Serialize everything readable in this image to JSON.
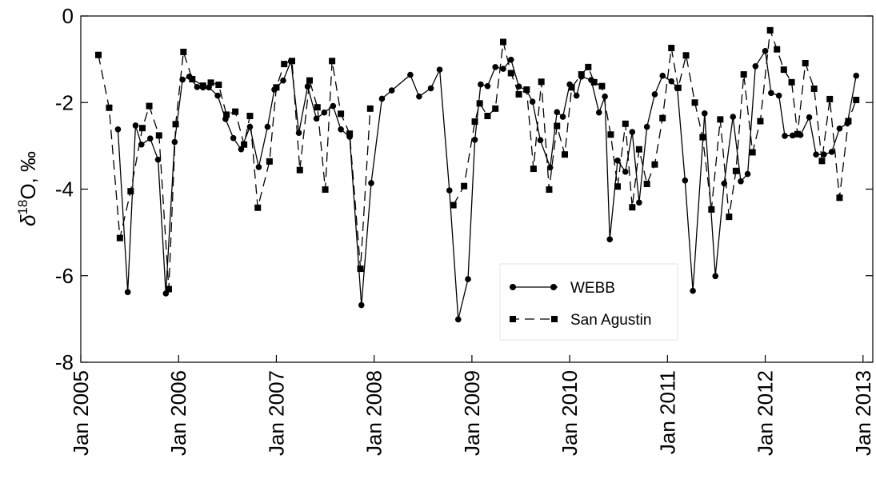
{
  "chart_data": {
    "type": "line",
    "title": "",
    "xlabel": "",
    "ylabel": "δ18O, ‰",
    "ylabel_parts": {
      "symbol": "δ",
      "superscript": "18",
      "element": "O",
      "unit": ", ‰"
    },
    "xlim": [
      2005.0,
      2013.1
    ],
    "ylim": [
      -8,
      0
    ],
    "x_ticks": [
      {
        "value": 2005,
        "label": "Jan 2005"
      },
      {
        "value": 2006,
        "label": "Jan 2006"
      },
      {
        "value": 2007,
        "label": "Jan 2007"
      },
      {
        "value": 2008,
        "label": "Jan 2008"
      },
      {
        "value": 2009,
        "label": "Jan 2009"
      },
      {
        "value": 2010,
        "label": "Jan 2010"
      },
      {
        "value": 2011,
        "label": "Jan 2011"
      },
      {
        "value": 2012,
        "label": "Jan 2012"
      },
      {
        "value": 2013,
        "label": "Jan 2013"
      }
    ],
    "y_ticks": [
      {
        "value": 0,
        "label": "0"
      },
      {
        "value": -2,
        "label": "-2"
      },
      {
        "value": -4,
        "label": "-4"
      },
      {
        "value": -6,
        "label": "-6"
      },
      {
        "value": -8,
        "label": "-8"
      }
    ],
    "grid": false,
    "legend_position": "center-right",
    "series": [
      {
        "name": "WEBB",
        "style": "solid",
        "marker": "circle",
        "color": "#000000",
        "points": [
          [
            2005.38,
            -2.62
          ],
          [
            2005.48,
            -6.38
          ],
          [
            2005.56,
            -2.53
          ],
          [
            2005.62,
            -2.97
          ],
          [
            2005.71,
            -2.83
          ],
          [
            2005.79,
            -3.32
          ],
          [
            2005.87,
            -6.41
          ],
          [
            2005.96,
            -2.91
          ],
          [
            2006.04,
            -1.47
          ],
          [
            2006.11,
            -1.4
          ],
          [
            2006.19,
            -1.64
          ],
          [
            2006.25,
            -1.65
          ],
          [
            2006.31,
            -1.65
          ],
          [
            2006.4,
            -1.84
          ],
          [
            2006.48,
            -2.38
          ],
          [
            2006.56,
            -2.82
          ],
          [
            2006.64,
            -3.08
          ],
          [
            2006.73,
            -2.56
          ],
          [
            2006.82,
            -3.49
          ],
          [
            2006.91,
            -2.56
          ],
          [
            2006.98,
            -1.7
          ],
          [
            2007.07,
            -1.49
          ],
          [
            2007.15,
            -1.04
          ],
          [
            2007.23,
            -2.7
          ],
          [
            2007.32,
            -1.63
          ],
          [
            2007.41,
            -2.37
          ],
          [
            2007.49,
            -2.23
          ],
          [
            2007.58,
            -2.08
          ],
          [
            2007.66,
            -2.62
          ],
          [
            2007.75,
            -2.79
          ],
          [
            2007.87,
            -6.68
          ],
          [
            2007.97,
            -3.86
          ],
          [
            2008.08,
            -1.91
          ],
          [
            2008.18,
            -1.72
          ],
          [
            2008.37,
            -1.36
          ],
          [
            2008.46,
            -1.86
          ],
          [
            2008.58,
            -1.67
          ],
          [
            2008.67,
            -1.24
          ],
          [
            2008.77,
            -4.03
          ],
          [
            2008.86,
            -7.01
          ],
          [
            2008.96,
            -6.08
          ],
          [
            2009.03,
            -2.86
          ],
          [
            2009.09,
            -1.58
          ],
          [
            2009.16,
            -1.62
          ],
          [
            2009.24,
            -1.18
          ],
          [
            2009.32,
            -1.22
          ],
          [
            2009.4,
            -1.01
          ],
          [
            2009.48,
            -1.63
          ],
          [
            2009.56,
            -1.72
          ],
          [
            2009.62,
            -1.98
          ],
          [
            2009.7,
            -2.87
          ],
          [
            2009.8,
            -3.5
          ],
          [
            2009.87,
            -2.22
          ],
          [
            2009.93,
            -2.33
          ],
          [
            2010.0,
            -1.58
          ],
          [
            2010.07,
            -1.84
          ],
          [
            2010.12,
            -1.4
          ],
          [
            2010.22,
            -1.48
          ],
          [
            2010.3,
            -2.23
          ],
          [
            2010.36,
            -1.86
          ],
          [
            2010.41,
            -5.16
          ],
          [
            2010.49,
            -3.34
          ],
          [
            2010.57,
            -3.6
          ],
          [
            2010.64,
            -2.68
          ],
          [
            2010.71,
            -4.31
          ],
          [
            2010.79,
            -2.56
          ],
          [
            2010.87,
            -1.81
          ],
          [
            2010.95,
            -1.38
          ],
          [
            2011.04,
            -1.51
          ],
          [
            2011.1,
            -1.66
          ],
          [
            2011.18,
            -3.8
          ],
          [
            2011.26,
            -6.35
          ],
          [
            2011.38,
            -2.25
          ],
          [
            2011.49,
            -6.01
          ],
          [
            2011.58,
            -3.87
          ],
          [
            2011.67,
            -2.33
          ],
          [
            2011.75,
            -3.82
          ],
          [
            2011.82,
            -3.65
          ],
          [
            2011.9,
            -1.16
          ],
          [
            2012.0,
            -0.81
          ],
          [
            2012.06,
            -1.78
          ],
          [
            2012.14,
            -1.84
          ],
          [
            2012.2,
            -2.77
          ],
          [
            2012.28,
            -2.76
          ],
          [
            2012.36,
            -2.75
          ],
          [
            2012.45,
            -2.34
          ],
          [
            2012.52,
            -3.2
          ],
          [
            2012.6,
            -3.2
          ],
          [
            2012.68,
            -3.14
          ],
          [
            2012.76,
            -2.6
          ],
          [
            2012.84,
            -2.48
          ],
          [
            2012.93,
            -1.38
          ]
        ]
      },
      {
        "name": "San Agustin",
        "style": "dashed",
        "marker": "square",
        "color": "#000000",
        "points": [
          [
            2005.18,
            -0.9
          ],
          [
            2005.29,
            -2.12
          ],
          [
            2005.4,
            -5.13
          ],
          [
            2005.51,
            -4.05
          ],
          [
            2005.63,
            -2.59
          ],
          [
            2005.7,
            -2.08
          ],
          [
            2005.8,
            -2.76
          ],
          [
            2005.9,
            -6.31
          ],
          [
            2005.97,
            -2.5
          ],
          [
            2006.05,
            -0.83
          ],
          [
            2006.14,
            -1.46
          ],
          [
            2006.25,
            -1.61
          ],
          [
            2006.33,
            -1.54
          ],
          [
            2006.41,
            -1.59
          ],
          [
            2006.49,
            -2.28
          ],
          [
            2006.58,
            -2.21
          ],
          [
            2006.67,
            -2.97
          ],
          [
            2006.73,
            -2.31
          ],
          [
            2006.81,
            -4.43
          ],
          [
            2006.93,
            -3.36
          ],
          [
            2007.0,
            -1.65
          ],
          [
            2007.08,
            -1.11
          ],
          [
            2007.16,
            -1.04
          ],
          [
            2007.24,
            -3.56
          ],
          [
            2007.34,
            -1.49
          ],
          [
            2007.42,
            -2.11
          ],
          [
            2007.5,
            -4.01
          ],
          [
            2007.57,
            -1.04
          ],
          [
            2007.66,
            -2.26
          ],
          [
            2007.75,
            -2.72
          ],
          [
            2007.86,
            -5.84
          ],
          [
            2007.96,
            -2.14
          ],
          [
            2008.81,
            -4.37
          ],
          [
            2008.92,
            -3.93
          ],
          [
            2009.03,
            -2.44
          ],
          [
            2009.08,
            -2.02
          ],
          [
            2009.16,
            -2.31
          ],
          [
            2009.24,
            -2.14
          ],
          [
            2009.32,
            -0.6
          ],
          [
            2009.4,
            -1.32
          ],
          [
            2009.48,
            -1.81
          ],
          [
            2009.56,
            -1.7
          ],
          [
            2009.63,
            -3.53
          ],
          [
            2009.71,
            -1.52
          ],
          [
            2009.79,
            -4.01
          ],
          [
            2009.87,
            -2.54
          ],
          [
            2009.95,
            -3.2
          ],
          [
            2010.02,
            -1.65
          ],
          [
            2010.12,
            -1.35
          ],
          [
            2010.19,
            -1.18
          ],
          [
            2010.25,
            -1.53
          ],
          [
            2010.33,
            -1.62
          ],
          [
            2010.42,
            -2.74
          ],
          [
            2010.49,
            -3.94
          ],
          [
            2010.57,
            -2.49
          ],
          [
            2010.64,
            -4.42
          ],
          [
            2010.71,
            -3.08
          ],
          [
            2010.79,
            -3.88
          ],
          [
            2010.87,
            -3.43
          ],
          [
            2010.95,
            -2.36
          ],
          [
            2011.04,
            -0.74
          ],
          [
            2011.11,
            -1.66
          ],
          [
            2011.19,
            -0.91
          ],
          [
            2011.28,
            -2.0
          ],
          [
            2011.36,
            -2.8
          ],
          [
            2011.45,
            -4.47
          ],
          [
            2011.54,
            -2.39
          ],
          [
            2011.63,
            -4.64
          ],
          [
            2011.7,
            -3.58
          ],
          [
            2011.78,
            -1.35
          ],
          [
            2011.87,
            -3.15
          ],
          [
            2011.95,
            -2.43
          ],
          [
            2012.05,
            -0.33
          ],
          [
            2012.12,
            -0.77
          ],
          [
            2012.19,
            -1.24
          ],
          [
            2012.27,
            -1.53
          ],
          [
            2012.33,
            -2.73
          ],
          [
            2012.41,
            -1.09
          ],
          [
            2012.5,
            -1.68
          ],
          [
            2012.58,
            -3.35
          ],
          [
            2012.66,
            -1.92
          ],
          [
            2012.76,
            -4.2
          ],
          [
            2012.85,
            -2.43
          ],
          [
            2012.93,
            -1.94
          ]
        ]
      }
    ]
  }
}
